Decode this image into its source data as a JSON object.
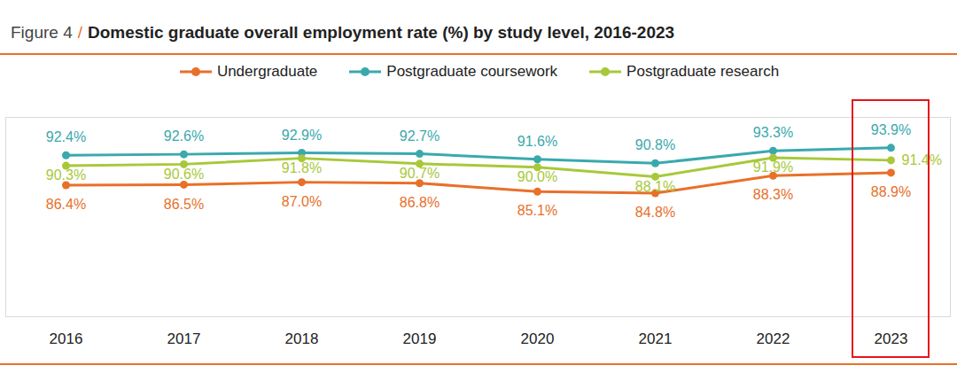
{
  "chart_data": {
    "type": "line",
    "title": "Figure 4 / Domestic graduate overall employment rate (%) by study level, 2016-2023",
    "categories": [
      "2016",
      "2017",
      "2018",
      "2019",
      "2020",
      "2021",
      "2022",
      "2023"
    ],
    "series": [
      {
        "name": "Undergraduate",
        "color": "#e8702a",
        "marker": "circle",
        "line_style": "solid",
        "values": [
          86.4,
          86.5,
          87.0,
          86.8,
          85.1,
          84.8,
          88.3,
          88.9
        ],
        "value_labels": [
          "86.4%",
          "86.5%",
          "87.0%",
          "86.8%",
          "85.1%",
          "84.8%",
          "88.3%",
          "88.9%"
        ]
      },
      {
        "name": "Postgraduate coursework",
        "color": "#3aa9ad",
        "marker": "circle",
        "line_style": "solid",
        "values": [
          92.4,
          92.6,
          92.9,
          92.7,
          91.6,
          90.8,
          93.3,
          93.9
        ],
        "value_labels": [
          "92.4%",
          "92.6%",
          "92.9%",
          "92.7%",
          "91.6%",
          "90.8%",
          "93.3%",
          "93.9%"
        ]
      },
      {
        "name": "Postgraduate research",
        "color": "#a8c83a",
        "marker": "circle",
        "line_style": "solid",
        "values": [
          90.3,
          90.6,
          91.8,
          90.7,
          90.0,
          88.1,
          91.9,
          91.4
        ],
        "value_labels": [
          "90.3%",
          "90.6%",
          "91.8%",
          "90.7%",
          "90.0%",
          "88.1%",
          "91.9%",
          "91.4%"
        ]
      }
    ],
    "ylim": [
      60,
      100
    ],
    "yticks": [],
    "tick_labels": "x",
    "data_labels": true,
    "legend": "top"
  }
}
